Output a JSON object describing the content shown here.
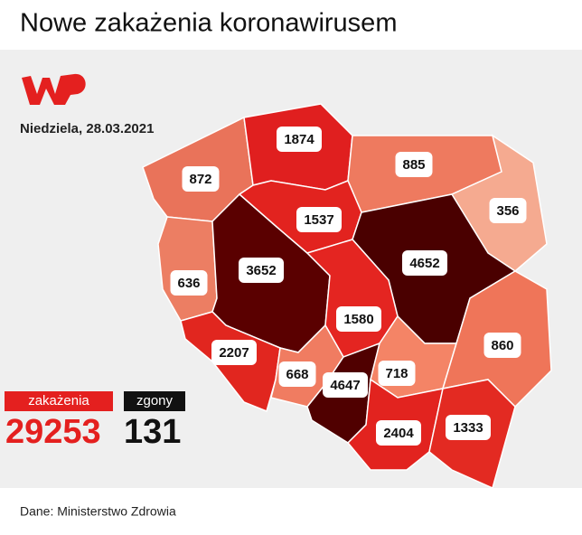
{
  "header": {
    "title": "Nowe zakażenia koronawirusem",
    "date": "Niedziela, 28.03.2021"
  },
  "map": {
    "regions": [
      {
        "value": 872,
        "color": "#e9735a",
        "label_at": "zp"
      },
      {
        "value": 1874,
        "color": "#e01f1f",
        "label_at": "pm"
      },
      {
        "value": 885,
        "color": "#ee7a5f",
        "label_at": "wm"
      },
      {
        "value": 356,
        "color": "#f5aa90",
        "label_at": "pd"
      },
      {
        "value": 636,
        "color": "#ec7e63",
        "label_at": "lb"
      },
      {
        "value": 3652,
        "color": "#5a0000",
        "label_at": "wp"
      },
      {
        "value": 1537,
        "color": "#e2231f",
        "label_at": "kp"
      },
      {
        "value": 4652,
        "color": "#4a0000",
        "label_at": "mz"
      },
      {
        "value": 1580,
        "color": "#e42521",
        "label_at": "ld"
      },
      {
        "value": 2207,
        "color": "#e1261f",
        "label_at": "ds"
      },
      {
        "value": 668,
        "color": "#f07c61",
        "label_at": "op"
      },
      {
        "value": 4647,
        "color": "#500000",
        "label_at": "sl"
      },
      {
        "value": 718,
        "color": "#f48466",
        "label_at": "sk"
      },
      {
        "value": 860,
        "color": "#ef7559",
        "label_at": "lu"
      },
      {
        "value": 2404,
        "color": "#e2231f",
        "label_at": "mp"
      },
      {
        "value": 1333,
        "color": "#e32a22",
        "label_at": "pk"
      }
    ]
  },
  "totals": {
    "cases_label": "zakażenia",
    "cases": 29253,
    "deaths_label": "zgony",
    "deaths": 131
  },
  "footer": {
    "source": "Dane: Ministerstwo Zdrowia"
  }
}
